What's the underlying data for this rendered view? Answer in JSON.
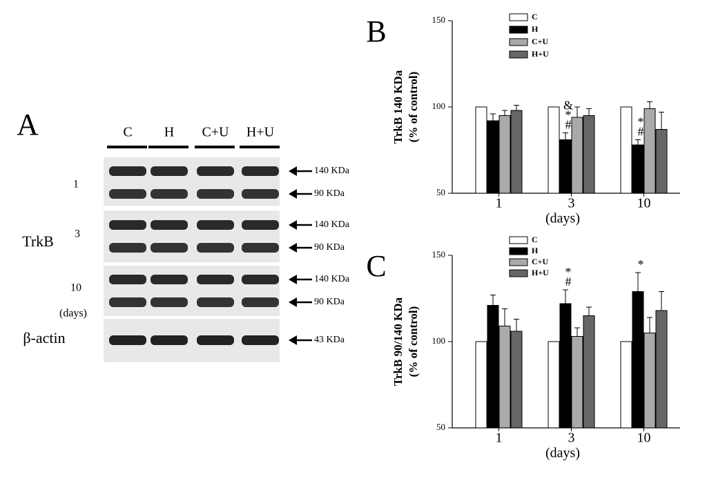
{
  "blot": {
    "panel": "A",
    "lanes": [
      "C",
      "H",
      "C+U",
      "H+U"
    ],
    "protein": "TrkB",
    "days_label": "(days)",
    "groups": [
      {
        "label": "1",
        "markers": [
          "140 KDa",
          "90  KDa"
        ]
      },
      {
        "label": "3",
        "markers": [
          "140 KDa",
          "90  KDa"
        ]
      },
      {
        "label": "10",
        "markers": [
          "140 KDa",
          "90  KDa"
        ]
      }
    ],
    "control": {
      "label": "β-actin",
      "markers": [
        "43  KDa"
      ]
    }
  },
  "chart_data": [
    {
      "type": "bar",
      "panel": "B",
      "ylabel": "TrkB 140 KDa",
      "ylabel2": "(% of control)",
      "xlabel": "(days)",
      "categories": [
        "1",
        "3",
        "10"
      ],
      "ylim": [
        50,
        150
      ],
      "yticks": [
        50,
        100,
        150
      ],
      "series": [
        {
          "name": "C",
          "color": "#ffffff",
          "values": [
            100,
            100,
            100
          ],
          "errors": [
            0,
            0,
            0
          ]
        },
        {
          "name": "H",
          "color": "#000000",
          "values": [
            92,
            81,
            78
          ],
          "errors": [
            4,
            4,
            3
          ]
        },
        {
          "name": "C+U",
          "color": "#aaaaaa",
          "values": [
            95,
            94,
            99
          ],
          "errors": [
            3,
            6,
            4
          ]
        },
        {
          "name": "H+U",
          "color": "#666666",
          "values": [
            98,
            95,
            87
          ],
          "errors": [
            3,
            4,
            10
          ]
        }
      ],
      "annotations": [
        {
          "series": "H",
          "category": "3",
          "text": [
            "#",
            "*",
            "&"
          ]
        },
        {
          "series": "H",
          "category": "10",
          "text": [
            "#",
            "*"
          ]
        }
      ]
    },
    {
      "type": "bar",
      "panel": "C",
      "ylabel": "TrkB 90/140 KDa",
      "ylabel2": "(% of control)",
      "xlabel": "(days)",
      "categories": [
        "1",
        "3",
        "10"
      ],
      "ylim": [
        50,
        150
      ],
      "yticks": [
        50,
        100,
        150
      ],
      "series": [
        {
          "name": "C",
          "color": "#ffffff",
          "values": [
            100,
            100,
            100
          ],
          "errors": [
            0,
            0,
            0
          ]
        },
        {
          "name": "H",
          "color": "#000000",
          "values": [
            121,
            122,
            129
          ],
          "errors": [
            6,
            8,
            11
          ]
        },
        {
          "name": "C+U",
          "color": "#aaaaaa",
          "values": [
            109,
            103,
            105
          ],
          "errors": [
            10,
            5,
            9
          ]
        },
        {
          "name": "H+U",
          "color": "#666666",
          "values": [
            106,
            115,
            118
          ],
          "errors": [
            7,
            5,
            11
          ]
        }
      ],
      "annotations": [
        {
          "series": "H",
          "category": "3",
          "text": [
            "#",
            "*"
          ]
        },
        {
          "series": "H",
          "category": "10",
          "text": [
            "*"
          ]
        }
      ]
    }
  ]
}
